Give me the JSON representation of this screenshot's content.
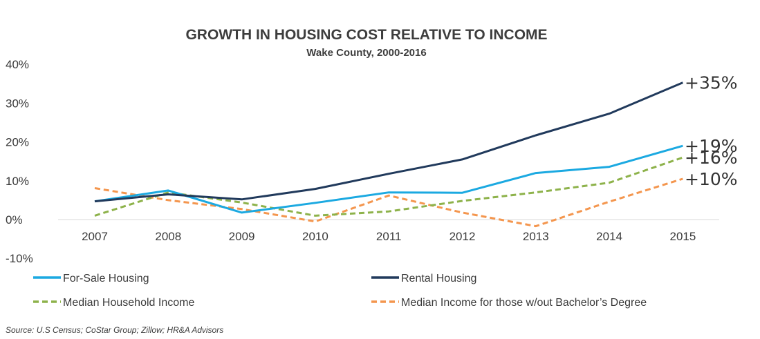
{
  "chart_data": {
    "type": "line",
    "title": "GROWTH IN HOUSING COST RELATIVE TO INCOME",
    "subtitle": "Wake County, 2000-2016",
    "categories": [
      "2007",
      "2008",
      "2009",
      "2010",
      "2011",
      "2012",
      "2013",
      "2014",
      "2015"
    ],
    "y_ticks": [
      "40%",
      "30%",
      "20%",
      "10%",
      "0%",
      "-10%"
    ],
    "y_tick_values": [
      40,
      30,
      20,
      10,
      0,
      -10
    ],
    "ylim": [
      -10,
      40
    ],
    "grid": false,
    "legend_position": "bottom",
    "series": [
      {
        "name": "For-Sale Housing",
        "color": "#1ba9e1",
        "dash": "solid",
        "values": [
          4.7,
          7.5,
          1.8,
          4.3,
          7.0,
          6.9,
          12.0,
          13.6,
          19.0
        ],
        "end_label": "+19%"
      },
      {
        "name": "Rental Housing",
        "color": "#213a5c",
        "dash": "solid",
        "values": [
          4.7,
          6.5,
          5.2,
          7.9,
          11.8,
          15.5,
          21.7,
          27.3,
          35.3
        ],
        "end_label": "+35%"
      },
      {
        "name": "Median Household Income",
        "color": "#8db24a",
        "dash": "dashed",
        "values": [
          1.0,
          7.0,
          4.4,
          1.0,
          2.1,
          4.8,
          7.0,
          9.5,
          16.0
        ],
        "end_label": "+16%"
      },
      {
        "name": "Median Income for those w/out Bachelor’s Degree",
        "color": "#f4964e",
        "dash": "dashed",
        "values": [
          8.1,
          5.0,
          2.7,
          -0.5,
          6.2,
          1.8,
          -1.7,
          4.6,
          10.5
        ],
        "end_label": "+10%"
      }
    ]
  },
  "source": "Source: U.S Census; CoStar Group; Zillow; HR&A Advisors"
}
